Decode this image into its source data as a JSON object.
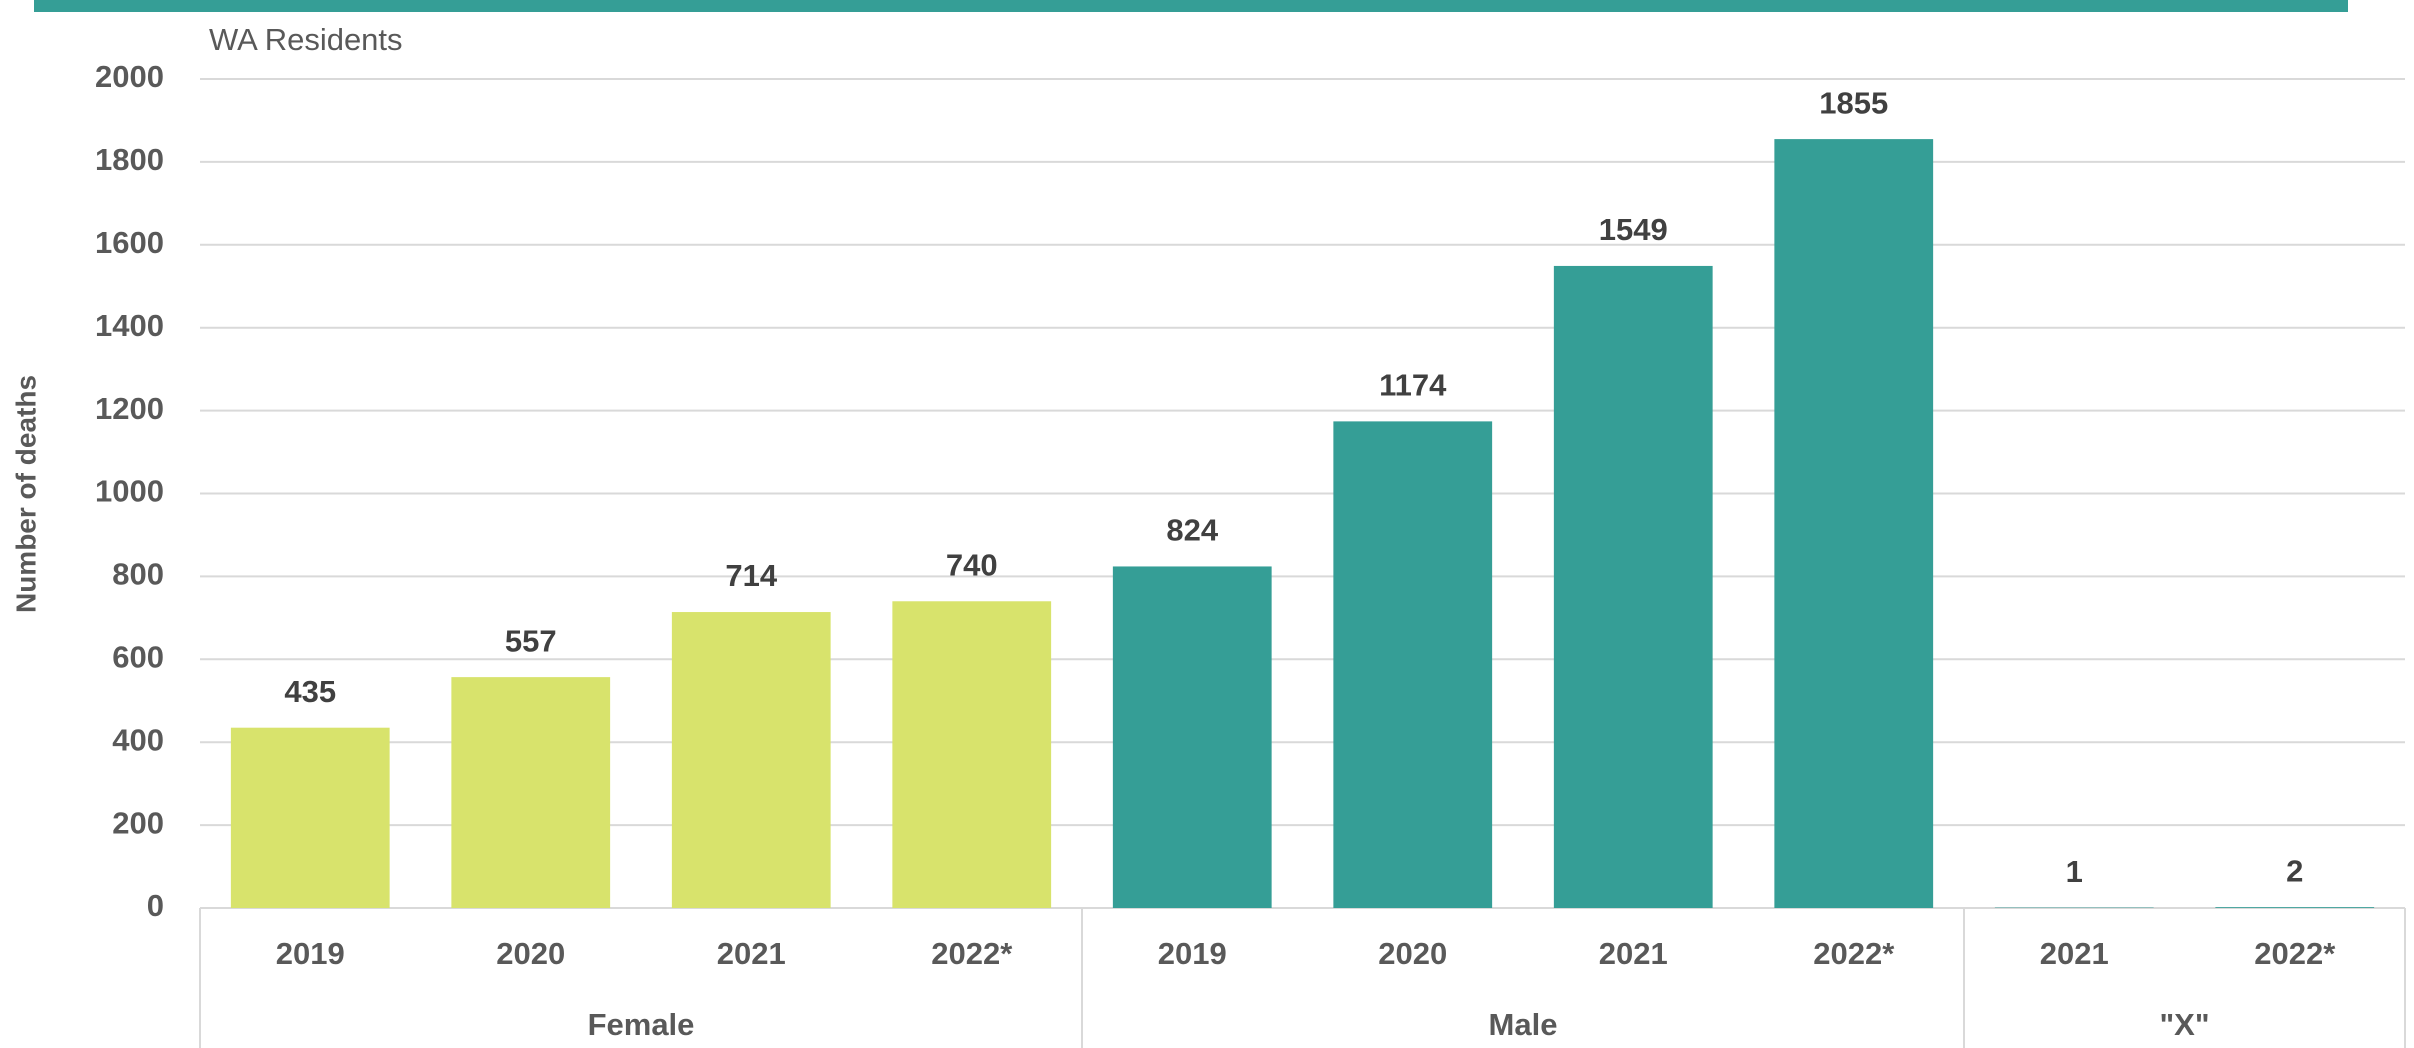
{
  "chart_data": {
    "type": "bar",
    "title": "WA Residents",
    "y_label": "Number of deaths",
    "categories": [
      "2019",
      "2020",
      "2021",
      "2022*",
      "2019",
      "2020",
      "2021",
      "2022*",
      "2021",
      "2022*"
    ],
    "series": [
      {
        "name": "Female",
        "color": "#d8e36c",
        "values": [
          435,
          557,
          714,
          740,
          null,
          null,
          null,
          null,
          null,
          null
        ]
      },
      {
        "name": "Male",
        "color": "#359e96",
        "values": [
          null,
          null,
          null,
          null,
          824,
          1174,
          1549,
          1855,
          null,
          null
        ]
      },
      {
        "name": "\"X\"",
        "color": "#359e96",
        "values": [
          null,
          null,
          null,
          null,
          null,
          null,
          null,
          null,
          1,
          2
        ]
      }
    ],
    "ylim": [
      0,
      2000
    ],
    "yticks": [
      0,
      200,
      400,
      600,
      800,
      1000,
      1200,
      1400,
      1600,
      1800,
      2000
    ],
    "grid": true
  }
}
